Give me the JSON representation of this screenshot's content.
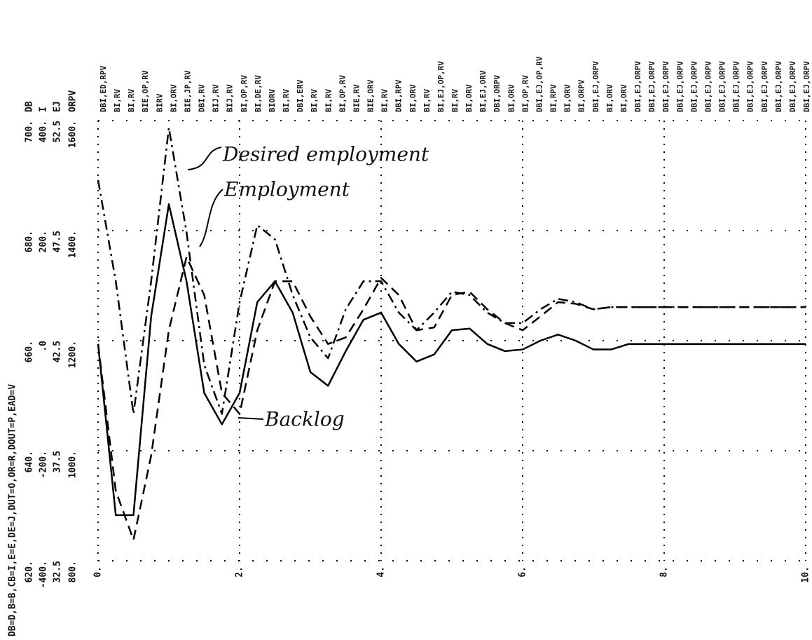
{
  "chart_data": {
    "type": "line",
    "legend_line": "DB=D,B=B,CB=I,E=E,DE=J,DUT=O,OR=R,DOUT=P,EAD=V",
    "xlim": [
      0,
      10
    ],
    "xticks": [
      {
        "value": 0,
        "label": "0."
      },
      {
        "value": 2,
        "label": "2."
      },
      {
        "value": 4,
        "label": "4."
      },
      {
        "value": 6,
        "label": "6."
      },
      {
        "value": 8,
        "label": "8."
      },
      {
        "value": 10,
        "label": "10."
      }
    ],
    "ylim": [
      620,
      700
    ],
    "yticks": [
      {
        "value": 620,
        "label": "620."
      },
      {
        "value": 640,
        "label": "640."
      },
      {
        "value": 660,
        "label": "660."
      },
      {
        "value": 680,
        "label": "680."
      },
      {
        "value": 700,
        "label": "700."
      }
    ],
    "y_scales": [
      {
        "name": "DB"
      },
      {
        "name": "I",
        "ticks": [
          "-400.",
          "-200.",
          ".0",
          "200.",
          "400."
        ]
      },
      {
        "name": "EJ",
        "ticks": [
          "32.5",
          "37.5",
          "42.5",
          "47.5",
          "52.5"
        ]
      },
      {
        "name": "ORPV",
        "ticks": [
          "800.",
          "1000.",
          "1200.",
          "1400.",
          "1600."
        ]
      }
    ],
    "grid": true,
    "row_labels": [
      "DBI,ED,RPV",
      "BI,RV",
      "BI,RV",
      "BIE,OP,RV",
      "BIRV",
      "BI,ORV",
      "BIE,JP,RV",
      "DBI,RV",
      "BIJ,RV",
      "BIJ,RV",
      "BI,OP,RV",
      "BI,DE,RV",
      "BIORV",
      "BI,RV",
      "DBI,ERV",
      "BI,RV",
      "BI,RV",
      "BI,OP,RV",
      "BIE,RV",
      "BIE,ORV",
      "BI,RV",
      "DBI,RPV",
      "BI,ORV",
      "BI,RV",
      "BI,EJ,OP,RV",
      "BI,RV",
      "BI,ORV",
      "BI,EJ,ORV",
      "DBI,ORPV",
      "BI,ORV",
      "BI,OP,RV",
      "DBI,EJ,OP,RV",
      "BI,RPV",
      "BI,ORV",
      "BI,ORPV",
      "DBI,EJ,ORPV",
      "BI,ORV",
      "BI,ORV",
      "DBI,EJ,ORPV",
      "DBI,EJ,ORPV",
      "DBI,EJ,ORPV",
      "DBI,EJ,ORPV",
      "DBI,EJ,ORPV",
      "DBI,EJ,ORPV",
      "DBI,EJ,ORPV",
      "DBI,EJ,ORPV",
      "DBI,EJ,ORPV",
      "DBI,EJ,ORPV",
      "DBI,EJ,ORPV",
      "DBI,EJ,ORPV",
      "DBI,EJ,ORPV"
    ],
    "x": [
      0,
      0.25,
      0.5,
      0.75,
      1,
      1.25,
      1.5,
      1.75,
      2,
      2.25,
      2.5,
      2.75,
      3,
      3.25,
      3.5,
      3.75,
      4,
      4.25,
      4.5,
      4.75,
      5,
      5.25,
      5.5,
      5.75,
      6,
      6.25,
      6.5,
      6.75,
      7,
      7.25,
      7.5,
      7.75,
      8,
      8.25,
      8.5,
      8.75,
      9,
      9.25,
      9.5,
      9.75,
      10
    ],
    "series": [
      {
        "name": "Desired employment",
        "color": "#000000",
        "style": "dashdot",
        "values": [
          689.2,
          670.8,
          646.7,
          670.8,
          698.7,
          679.7,
          655.6,
          646.7,
          667.0,
          681.0,
          678.4,
          668.3,
          660.6,
          656.8,
          665.7,
          670.8,
          670.8,
          665.1,
          661.9,
          665.1,
          668.9,
          668.3,
          665.1,
          663.2,
          663.2,
          665.7,
          667.6,
          667.0,
          665.7,
          666.1,
          666.1,
          666.1,
          666.1,
          666.1,
          666.1,
          666.1,
          666.1,
          666.1,
          666.1,
          666.1,
          666.1
        ]
      },
      {
        "name": "Employment",
        "color": "#000000",
        "style": "dashed",
        "values": [
          659.4,
          632.7,
          623.8,
          639.1,
          661.9,
          675.2,
          668.3,
          650.5,
          646.7,
          661.9,
          670.8,
          670.8,
          664.4,
          659.4,
          660.6,
          665.7,
          671.4,
          668.3,
          661.9,
          662.4,
          668.3,
          668.9,
          665.7,
          663.2,
          661.9,
          664.4,
          667.0,
          666.7,
          665.7,
          666.1,
          666.1,
          666.1,
          666.1,
          666.1,
          666.1,
          666.1,
          666.1,
          666.1,
          666.1,
          666.1,
          666.1
        ]
      },
      {
        "name": "Backlog",
        "color": "#000000",
        "style": "solid",
        "values": [
          659.4,
          628.3,
          628.3,
          664.4,
          684.8,
          670.8,
          650.5,
          644.8,
          650.5,
          667.0,
          670.8,
          665.1,
          654.3,
          651.8,
          658.1,
          663.8,
          665.1,
          659.4,
          656.2,
          657.5,
          661.9,
          662.2,
          659.4,
          658.1,
          658.4,
          660.0,
          661.1,
          660.0,
          658.4,
          658.4,
          659.4,
          659.4,
          659.4,
          659.4,
          659.4,
          659.4,
          659.4,
          659.4,
          659.4,
          659.4,
          659.4
        ]
      }
    ]
  }
}
